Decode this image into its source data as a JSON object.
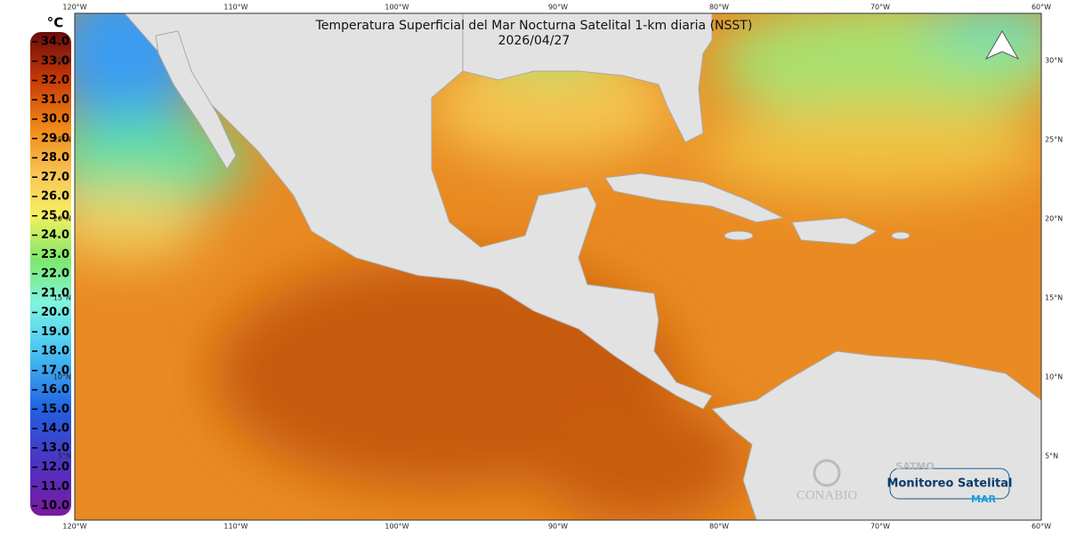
{
  "header": {
    "title": "Temperatura Superficial del Mar Nocturna Satelital 1-km diaria (NSST)",
    "date": "2026/04/27"
  },
  "axes": {
    "longitudes": [
      "120°W",
      "110°W",
      "100°W",
      "90°W",
      "80°W",
      "70°W",
      "60°W"
    ],
    "latitudes": [
      "30°N",
      "25°N",
      "20°N",
      "15°N",
      "10°N",
      "5°N"
    ]
  },
  "colorbar": {
    "unit": "°C",
    "labels": [
      "34.0",
      "33.0",
      "32.0",
      "31.0",
      "30.0",
      "29.0",
      "28.0",
      "27.0",
      "26.0",
      "25.0",
      "24.0",
      "23.0",
      "22.0",
      "21.0",
      "20.0",
      "19.0",
      "18.0",
      "17.0",
      "16.0",
      "15.0",
      "14.0",
      "13.0",
      "12.0",
      "11.0",
      "10.0"
    ]
  },
  "logos": {
    "conabio": "CONABIO",
    "satmo": "SATMO",
    "monitoreo": "Monitoreo Satelital",
    "mar": "MAR"
  }
}
